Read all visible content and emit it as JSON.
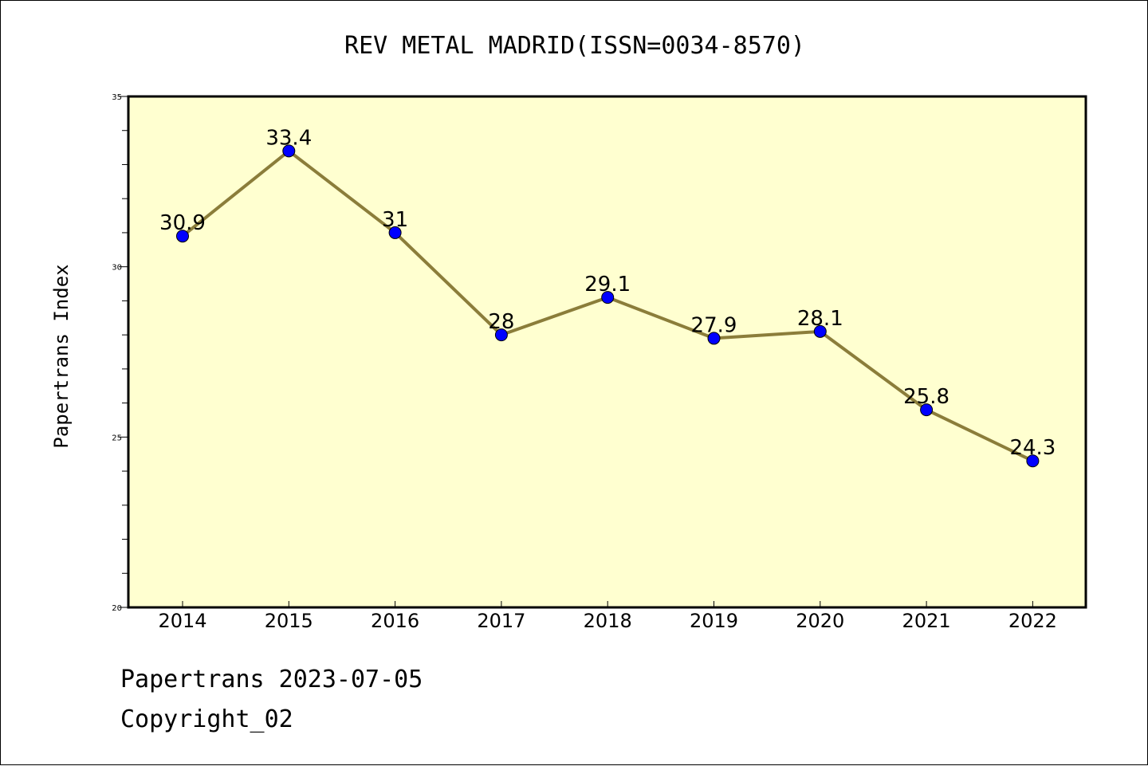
{
  "footer": {
    "line1": "Papertrans 2023-07-05",
    "line2": "Copyright_02"
  },
  "colors": {
    "plot_background": "#ffffd0",
    "line": "#8b7d3a",
    "marker": "#0000ff"
  },
  "chart_data": {
    "type": "line",
    "title": "REV METAL MADRID(ISSN=0034-8570)",
    "ylabel": "Papertrans Index",
    "xlabel": "",
    "categories": [
      "2014",
      "2015",
      "2016",
      "2017",
      "2018",
      "2019",
      "2020",
      "2021",
      "2022"
    ],
    "series": [
      {
        "values": [
          30.9,
          33.4,
          31,
          28,
          29.1,
          27.9,
          28.1,
          25.8,
          24.3
        ],
        "labels": [
          "30.9",
          "33.4",
          "31",
          "28",
          "29.1",
          "27.9",
          "28.1",
          "25.8",
          "24.3"
        ]
      }
    ],
    "ylim": [
      20,
      35
    ],
    "yticks": [
      "20",
      "25",
      "30",
      "35"
    ],
    "grid": false,
    "legend": "none"
  }
}
